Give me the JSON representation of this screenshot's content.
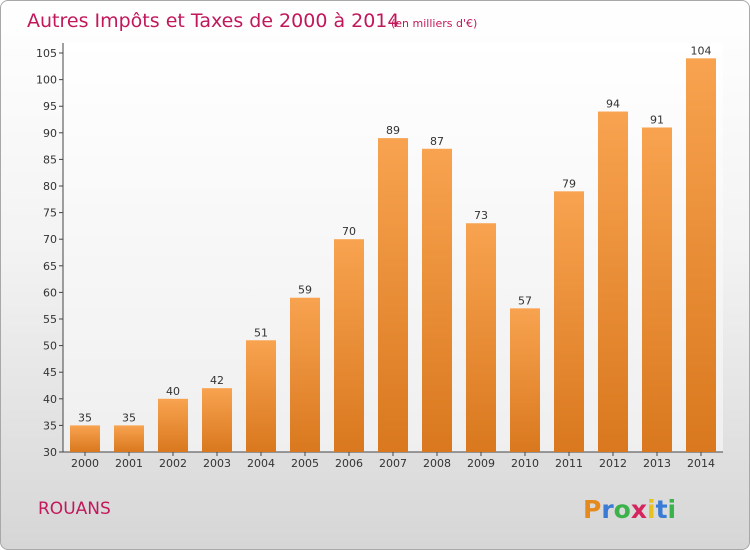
{
  "header": {
    "title": "Autres Impôts et Taxes de 2000 à 2014",
    "unit": "(en milliers d'€)"
  },
  "footer": {
    "commune": "ROUANS",
    "logo_name": "proxiti-logo",
    "logo_letters": [
      "P",
      "r",
      "o",
      "x",
      "i",
      "t",
      "i"
    ],
    "logo_colors": [
      "#e58a1f",
      "#3a7bd5",
      "#3bb34a",
      "#d6245d",
      "#e5c21f",
      "#3a7bd5",
      "#3bb34a"
    ]
  },
  "chart_data": {
    "type": "bar",
    "title": "Autres Impôts et Taxes de 2000 à 2014",
    "subtitle": "(en milliers d'€)",
    "categories": [
      "2000",
      "2001",
      "2002",
      "2003",
      "2004",
      "2005",
      "2006",
      "2007",
      "2008",
      "2009",
      "2010",
      "2011",
      "2012",
      "2013",
      "2014"
    ],
    "values": [
      35,
      35,
      40,
      42,
      51,
      59,
      70,
      89,
      87,
      73,
      57,
      79,
      94,
      91,
      104
    ],
    "ylim": [
      30,
      105
    ],
    "yticks": [
      30,
      35,
      40,
      45,
      50,
      55,
      60,
      65,
      70,
      75,
      80,
      85,
      90,
      95,
      100,
      105
    ],
    "grid": false,
    "data_labels": true,
    "bar_color_light": "#f8a350",
    "bar_color_dark": "#d9781e"
  }
}
